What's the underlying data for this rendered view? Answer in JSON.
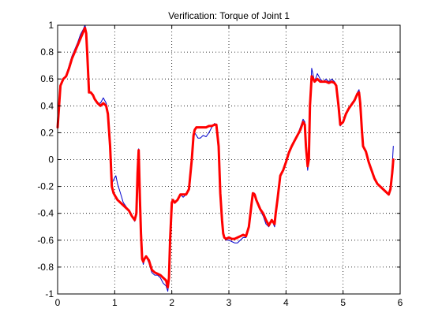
{
  "chart_data": {
    "type": "line",
    "title": "Verification: Torque of Joint 1",
    "xlabel": "",
    "ylabel": "",
    "xlim": [
      0,
      6
    ],
    "ylim": [
      -1,
      1
    ],
    "xticks": [
      0,
      1,
      2,
      3,
      4,
      5,
      6
    ],
    "yticks": [
      -1,
      -0.8,
      -0.6,
      -0.4,
      -0.2,
      0,
      0.2,
      0.4,
      0.6,
      0.8,
      1
    ],
    "grid": true,
    "legend": "none",
    "series": [
      {
        "color": "#0000cc",
        "width": 1,
        "x": [
          0,
          0.05,
          0.1,
          0.15,
          0.2,
          0.25,
          0.3,
          0.35,
          0.4,
          0.45,
          0.48,
          0.5,
          0.52,
          0.55,
          0.58,
          0.62,
          0.65,
          0.7,
          0.75,
          0.8,
          0.85,
          0.88,
          0.92,
          0.95,
          0.98,
          1.02,
          1.05,
          1.1,
          1.15,
          1.2,
          1.25,
          1.3,
          1.35,
          1.38,
          1.4,
          1.42,
          1.44,
          1.46,
          1.48,
          1.5,
          1.52,
          1.55,
          1.6,
          1.65,
          1.7,
          1.75,
          1.8,
          1.85,
          1.9,
          1.93,
          1.95,
          1.97,
          2.0,
          2.02,
          2.05,
          2.1,
          2.15,
          2.2,
          2.25,
          2.3,
          2.35,
          2.38,
          2.4,
          2.43,
          2.46,
          2.5,
          2.55,
          2.6,
          2.65,
          2.7,
          2.75,
          2.78,
          2.82,
          2.85,
          2.88,
          2.9,
          2.92,
          2.95,
          3.0,
          3.05,
          3.1,
          3.15,
          3.2,
          3.25,
          3.3,
          3.35,
          3.4,
          3.42,
          3.45,
          3.48,
          3.52,
          3.55,
          3.6,
          3.65,
          3.7,
          3.75,
          3.8,
          3.82,
          3.85,
          3.9,
          3.95,
          4.0,
          4.05,
          4.1,
          4.15,
          4.2,
          4.25,
          4.3,
          4.33,
          4.35,
          4.38,
          4.4,
          4.42,
          4.45,
          4.48,
          4.5,
          4.55,
          4.6,
          4.65,
          4.7,
          4.75,
          4.8,
          4.85,
          4.88,
          4.92,
          4.95,
          5.0,
          5.05,
          5.1,
          5.15,
          5.2,
          5.25,
          5.28,
          5.3,
          5.33,
          5.35,
          5.4,
          5.45,
          5.5,
          5.55,
          5.6,
          5.65,
          5.7,
          5.75,
          5.8,
          5.83,
          5.86,
          5.88
        ],
        "y": [
          0.26,
          0.55,
          0.6,
          0.63,
          0.7,
          0.77,
          0.82,
          0.87,
          0.93,
          0.97,
          1.0,
          0.96,
          0.8,
          0.5,
          0.5,
          0.48,
          0.45,
          0.42,
          0.42,
          0.46,
          0.42,
          0.36,
          0.1,
          -0.18,
          -0.15,
          -0.12,
          -0.18,
          -0.25,
          -0.32,
          -0.35,
          -0.38,
          -0.42,
          -0.46,
          -0.42,
          -0.1,
          0.08,
          -0.3,
          -0.55,
          -0.73,
          -0.78,
          -0.75,
          -0.72,
          -0.77,
          -0.84,
          -0.86,
          -0.86,
          -0.88,
          -0.92,
          -0.94,
          -0.98,
          -0.9,
          -0.6,
          -0.35,
          -0.3,
          -0.32,
          -0.3,
          -0.26,
          -0.28,
          -0.26,
          -0.22,
          0.0,
          0.15,
          0.2,
          0.18,
          0.16,
          0.16,
          0.18,
          0.17,
          0.2,
          0.24,
          0.27,
          0.25,
          0.1,
          -0.25,
          -0.45,
          -0.55,
          -0.58,
          -0.6,
          -0.6,
          -0.61,
          -0.62,
          -0.62,
          -0.6,
          -0.58,
          -0.58,
          -0.5,
          -0.32,
          -0.25,
          -0.25,
          -0.3,
          -0.35,
          -0.38,
          -0.42,
          -0.48,
          -0.5,
          -0.45,
          -0.5,
          -0.42,
          -0.32,
          -0.12,
          -0.08,
          -0.02,
          0.05,
          0.1,
          0.14,
          0.18,
          0.24,
          0.3,
          0.28,
          0.1,
          -0.08,
          0.0,
          0.4,
          0.68,
          0.62,
          0.58,
          0.64,
          0.6,
          0.58,
          0.6,
          0.58,
          0.6,
          0.58,
          0.55,
          0.4,
          0.25,
          0.28,
          0.35,
          0.38,
          0.42,
          0.45,
          0.5,
          0.52,
          0.44,
          0.22,
          0.1,
          0.06,
          -0.02,
          -0.08,
          -0.14,
          -0.18,
          -0.2,
          -0.22,
          -0.24,
          -0.26,
          -0.2,
          -0.05,
          0.1
        ]
      },
      {
        "color": "#ff0000",
        "width": 3,
        "x": [
          0,
          0.05,
          0.1,
          0.15,
          0.2,
          0.25,
          0.3,
          0.35,
          0.4,
          0.45,
          0.48,
          0.5,
          0.52,
          0.55,
          0.58,
          0.62,
          0.65,
          0.7,
          0.75,
          0.8,
          0.85,
          0.88,
          0.92,
          0.95,
          0.98,
          1.02,
          1.05,
          1.1,
          1.15,
          1.2,
          1.25,
          1.3,
          1.35,
          1.38,
          1.4,
          1.42,
          1.44,
          1.46,
          1.48,
          1.5,
          1.52,
          1.55,
          1.6,
          1.65,
          1.7,
          1.75,
          1.8,
          1.85,
          1.9,
          1.93,
          1.95,
          1.97,
          2.0,
          2.02,
          2.05,
          2.1,
          2.15,
          2.2,
          2.25,
          2.3,
          2.35,
          2.38,
          2.4,
          2.43,
          2.46,
          2.5,
          2.55,
          2.6,
          2.65,
          2.7,
          2.75,
          2.78,
          2.82,
          2.85,
          2.88,
          2.9,
          2.92,
          2.95,
          3.0,
          3.05,
          3.1,
          3.15,
          3.2,
          3.25,
          3.3,
          3.35,
          3.4,
          3.42,
          3.45,
          3.48,
          3.52,
          3.55,
          3.6,
          3.65,
          3.7,
          3.75,
          3.8,
          3.82,
          3.85,
          3.9,
          3.95,
          4.0,
          4.05,
          4.1,
          4.15,
          4.2,
          4.25,
          4.3,
          4.33,
          4.35,
          4.38,
          4.4,
          4.42,
          4.45,
          4.48,
          4.5,
          4.55,
          4.6,
          4.65,
          4.7,
          4.75,
          4.8,
          4.85,
          4.88,
          4.92,
          4.95,
          5.0,
          5.05,
          5.1,
          5.15,
          5.2,
          5.25,
          5.28,
          5.3,
          5.33,
          5.35,
          5.4,
          5.45,
          5.5,
          5.55,
          5.6,
          5.65,
          5.7,
          5.75,
          5.8,
          5.83,
          5.86,
          5.88
        ],
        "y": [
          0.24,
          0.55,
          0.6,
          0.62,
          0.68,
          0.75,
          0.8,
          0.85,
          0.9,
          0.95,
          0.98,
          0.94,
          0.78,
          0.5,
          0.5,
          0.48,
          0.45,
          0.42,
          0.4,
          0.42,
          0.4,
          0.34,
          0.1,
          -0.2,
          -0.25,
          -0.28,
          -0.3,
          -0.32,
          -0.34,
          -0.36,
          -0.38,
          -0.42,
          -0.45,
          -0.4,
          -0.1,
          0.07,
          -0.28,
          -0.55,
          -0.74,
          -0.76,
          -0.74,
          -0.72,
          -0.75,
          -0.82,
          -0.84,
          -0.85,
          -0.86,
          -0.88,
          -0.9,
          -0.95,
          -0.88,
          -0.6,
          -0.32,
          -0.3,
          -0.32,
          -0.3,
          -0.26,
          -0.26,
          -0.26,
          -0.22,
          0.0,
          0.18,
          0.22,
          0.24,
          0.24,
          0.24,
          0.24,
          0.24,
          0.25,
          0.25,
          0.26,
          0.26,
          0.1,
          -0.25,
          -0.45,
          -0.55,
          -0.58,
          -0.59,
          -0.58,
          -0.59,
          -0.59,
          -0.58,
          -0.57,
          -0.56,
          -0.57,
          -0.5,
          -0.32,
          -0.25,
          -0.26,
          -0.3,
          -0.34,
          -0.37,
          -0.4,
          -0.45,
          -0.49,
          -0.45,
          -0.48,
          -0.4,
          -0.3,
          -0.12,
          -0.08,
          -0.02,
          0.05,
          0.1,
          0.14,
          0.18,
          0.22,
          0.28,
          0.26,
          0.1,
          -0.05,
          0.0,
          0.4,
          0.62,
          0.6,
          0.58,
          0.6,
          0.58,
          0.58,
          0.58,
          0.57,
          0.58,
          0.57,
          0.55,
          0.4,
          0.26,
          0.28,
          0.34,
          0.38,
          0.41,
          0.44,
          0.49,
          0.5,
          0.42,
          0.22,
          0.1,
          0.06,
          -0.02,
          -0.08,
          -0.14,
          -0.18,
          -0.2,
          -0.22,
          -0.24,
          -0.26,
          -0.22,
          -0.1,
          0.0
        ]
      }
    ]
  }
}
